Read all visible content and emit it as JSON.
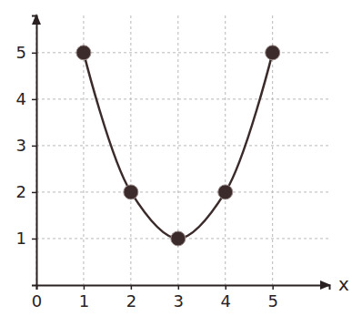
{
  "chart_data": {
    "type": "line",
    "x": [
      1,
      2,
      3,
      4,
      5
    ],
    "values": [
      5,
      2,
      1,
      2,
      5
    ],
    "xlabel": "x",
    "xlim": [
      0,
      6.2
    ],
    "ylim": [
      0,
      5.8
    ],
    "xticks": [
      0,
      1,
      2,
      3,
      4,
      5
    ],
    "yticks": [
      1,
      2,
      3,
      4,
      5
    ],
    "grid": true,
    "color": "#3b2b2b",
    "marker": "circle",
    "line_style": "solid"
  }
}
